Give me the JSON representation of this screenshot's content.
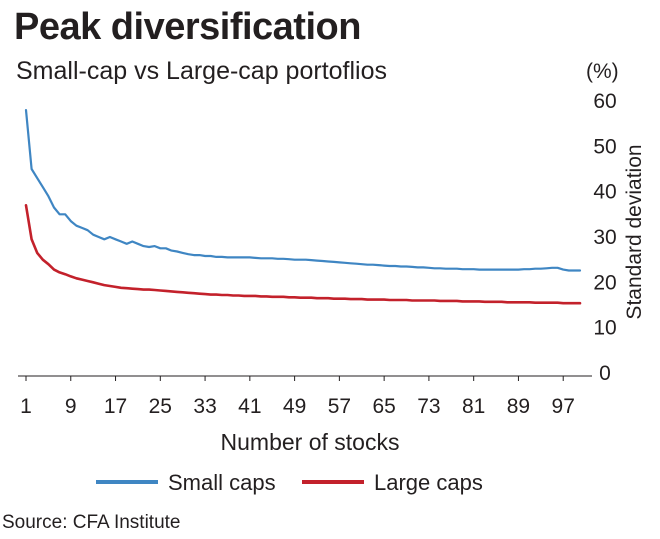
{
  "title": "Peak diversification",
  "subtitle": "Small-cap vs Large-cap portoflios",
  "unit_label": "(%)",
  "source": "Source: CFA Institute",
  "colors": {
    "small": "#3f86c3",
    "large": "#c3212b",
    "axis": "#231f20",
    "grid": "#e3e3e3"
  },
  "chart_data": {
    "type": "line",
    "xlabel": "Number of stocks",
    "ylabel": "Standard deviation",
    "xlim": [
      1,
      100
    ],
    "ylim": [
      0,
      60
    ],
    "x_ticks": [
      1,
      9,
      17,
      25,
      33,
      41,
      49,
      57,
      65,
      73,
      81,
      89,
      97
    ],
    "y_ticks": [
      0,
      10,
      20,
      30,
      40,
      50,
      60
    ],
    "grid": false,
    "legend": "bottom",
    "series": [
      {
        "name": "Small caps",
        "values": [
          58,
          45,
          43,
          41,
          39,
          36.5,
          35,
          35,
          33.5,
          32.5,
          32,
          31.5,
          30.5,
          30,
          29.5,
          30,
          29.5,
          29,
          28.5,
          29,
          28.5,
          28,
          27.8,
          28,
          27.5,
          27.5,
          27,
          26.8,
          26.5,
          26.2,
          26,
          26,
          25.8,
          25.8,
          25.6,
          25.6,
          25.5,
          25.5,
          25.5,
          25.5,
          25.5,
          25.4,
          25.3,
          25.3,
          25.3,
          25.2,
          25.2,
          25.1,
          25,
          25,
          25,
          24.9,
          24.8,
          24.7,
          24.6,
          24.5,
          24.4,
          24.3,
          24.2,
          24.1,
          24,
          23.9,
          23.9,
          23.8,
          23.7,
          23.6,
          23.6,
          23.5,
          23.5,
          23.4,
          23.3,
          23.3,
          23.2,
          23.1,
          23.1,
          23,
          23,
          23,
          22.9,
          22.9,
          22.9,
          22.8,
          22.8,
          22.8,
          22.8,
          22.8,
          22.8,
          22.8,
          22.8,
          22.9,
          22.9,
          23,
          23,
          23.1,
          23.2,
          23.2,
          22.8,
          22.6,
          22.6,
          22.6
        ]
      },
      {
        "name": "Large caps",
        "values": [
          37,
          29.5,
          26.5,
          25,
          24,
          22.8,
          22.2,
          21.8,
          21.3,
          20.9,
          20.6,
          20.3,
          20,
          19.7,
          19.4,
          19.2,
          19,
          18.8,
          18.7,
          18.6,
          18.5,
          18.4,
          18.4,
          18.3,
          18.2,
          18.1,
          18,
          17.9,
          17.8,
          17.7,
          17.6,
          17.5,
          17.4,
          17.3,
          17.3,
          17.2,
          17.2,
          17.1,
          17.1,
          17,
          17,
          17,
          16.9,
          16.9,
          16.8,
          16.8,
          16.8,
          16.7,
          16.7,
          16.6,
          16.6,
          16.6,
          16.5,
          16.5,
          16.5,
          16.4,
          16.4,
          16.4,
          16.3,
          16.3,
          16.3,
          16.2,
          16.2,
          16.2,
          16.2,
          16.1,
          16.1,
          16.1,
          16.1,
          16,
          16,
          16,
          16,
          16,
          15.9,
          15.9,
          15.9,
          15.9,
          15.8,
          15.8,
          15.8,
          15.8,
          15.7,
          15.7,
          15.7,
          15.7,
          15.6,
          15.6,
          15.6,
          15.6,
          15.6,
          15.5,
          15.5,
          15.5,
          15.5,
          15.5,
          15.4,
          15.4,
          15.4,
          15.4
        ]
      }
    ]
  }
}
